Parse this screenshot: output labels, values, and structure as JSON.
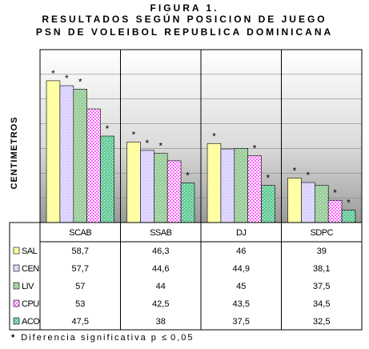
{
  "header": {
    "line1": "FIGURA 1.",
    "line2": "RESULTADOS SEGÚN POSICION DE JUEGO",
    "line3": "PSN DE VOLEIBOL REPUBLICA DOMINICANA"
  },
  "footnote": {
    "mark": "*",
    "text": "Diferencia significativa p",
    "symbol": "≤",
    "value": "0,05"
  },
  "chart_data": {
    "type": "bar",
    "ylabel": "CENTIMETROS",
    "ylim": [
      30,
      65
    ],
    "grid": "horizontal bands, no ticks shown",
    "categories": [
      "SCAB",
      "SSAB",
      "DJ",
      "SDPC"
    ],
    "series": [
      {
        "name": "SAL",
        "values": [
          58.7,
          46.3,
          46,
          39
        ],
        "labels": [
          "58,7",
          "46,3",
          "46",
          "39"
        ],
        "color": "#ffff99",
        "pattern": "dots"
      },
      {
        "name": "CEN",
        "values": [
          57.7,
          44.6,
          44.9,
          38.1
        ],
        "labels": [
          "57,7",
          "44,6",
          "44,9",
          "38,1"
        ],
        "color": "#d9d0ff",
        "pattern": "dots"
      },
      {
        "name": "LIV",
        "values": [
          57,
          44,
          45,
          37.5
        ],
        "labels": [
          "57",
          "44",
          "45",
          "37,5"
        ],
        "color": "#99cc99",
        "pattern": "dots"
      },
      {
        "name": "CPU",
        "values": [
          53,
          42.5,
          43.5,
          34.5
        ],
        "labels": [
          "53",
          "42,5",
          "43,5",
          "34,5"
        ],
        "color": "#ff66ff",
        "pattern": "checker"
      },
      {
        "name": "ACO",
        "values": [
          47.5,
          38,
          37.5,
          32.5
        ],
        "labels": [
          "47,5",
          "38",
          "37,5",
          "32,5"
        ],
        "color": "#66cc99",
        "pattern": "dots"
      }
    ],
    "significance": [
      [
        true,
        true,
        true,
        false,
        true
      ],
      [
        true,
        true,
        true,
        false,
        true
      ],
      [
        true,
        false,
        false,
        true,
        true
      ],
      [
        true,
        true,
        false,
        true,
        true
      ]
    ],
    "significance_mark": "*"
  }
}
